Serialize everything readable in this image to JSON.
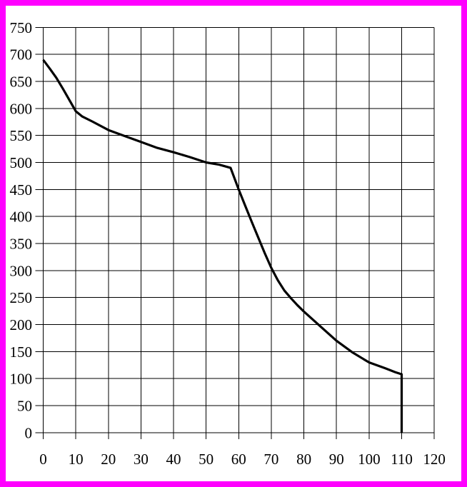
{
  "frame": {
    "border_color": "#ff00ff",
    "background_color": "#ffffff"
  },
  "chart_data": {
    "type": "line",
    "title": "",
    "xlabel": "",
    "ylabel": "",
    "xlim": [
      0,
      120
    ],
    "ylim": [
      0,
      750
    ],
    "x_ticks": [
      0,
      10,
      20,
      30,
      40,
      50,
      60,
      70,
      80,
      90,
      100,
      110,
      120
    ],
    "y_ticks": [
      0,
      50,
      100,
      150,
      200,
      250,
      300,
      350,
      400,
      450,
      500,
      550,
      600,
      650,
      700,
      750
    ],
    "grid": true,
    "grid_color": "#000000",
    "legend": "none",
    "series": [
      {
        "name": "curve",
        "color": "#000000",
        "points": [
          [
            0,
            690
          ],
          [
            2,
            674
          ],
          [
            4,
            657
          ],
          [
            6,
            637
          ],
          [
            8,
            616
          ],
          [
            10,
            595
          ],
          [
            12,
            585
          ],
          [
            15,
            576
          ],
          [
            20,
            560
          ],
          [
            25,
            549
          ],
          [
            30,
            538
          ],
          [
            35,
            527
          ],
          [
            40,
            519
          ],
          [
            45,
            510
          ],
          [
            50,
            500
          ],
          [
            54,
            496
          ],
          [
            57.5,
            490
          ],
          [
            60,
            450
          ],
          [
            62,
            420
          ],
          [
            64,
            390
          ],
          [
            66,
            361
          ],
          [
            68,
            332
          ],
          [
            70,
            305
          ],
          [
            72,
            282
          ],
          [
            74,
            263
          ],
          [
            76,
            249
          ],
          [
            78,
            236
          ],
          [
            80,
            224
          ],
          [
            85,
            197
          ],
          [
            90,
            170
          ],
          [
            95,
            148
          ],
          [
            100,
            130
          ],
          [
            105,
            119
          ],
          [
            108,
            112
          ],
          [
            110,
            108
          ],
          [
            110,
            0
          ]
        ]
      }
    ]
  }
}
